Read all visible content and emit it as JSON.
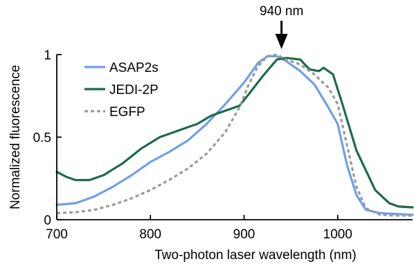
{
  "chart_data": {
    "type": "line",
    "xlabel": "Two-photon laser wavelength (nm)",
    "ylabel": "Normalized fluorescence",
    "xlim": [
      700,
      1080
    ],
    "ylim": [
      0,
      1
    ],
    "x_ticks": [
      700,
      800,
      900,
      1000
    ],
    "x_tick_labels": [
      "700",
      "800",
      "900",
      "1000"
    ],
    "y_ticks": [
      0,
      0.5,
      1
    ],
    "y_tick_labels": [
      "0",
      "0.5",
      "1"
    ],
    "grid": false,
    "legend_placement": "top-left",
    "annotation": {
      "text": "940 nm",
      "x": 940
    },
    "series": [
      {
        "name": "ASAP2s",
        "color": "#6e9ef0",
        "dash": "solid",
        "points": [
          [
            700,
            0.09
          ],
          [
            720,
            0.1
          ],
          [
            740,
            0.14
          ],
          [
            760,
            0.2
          ],
          [
            780,
            0.27
          ],
          [
            800,
            0.35
          ],
          [
            820,
            0.41
          ],
          [
            840,
            0.48
          ],
          [
            860,
            0.58
          ],
          [
            880,
            0.7
          ],
          [
            900,
            0.83
          ],
          [
            915,
            0.95
          ],
          [
            925,
            0.99
          ],
          [
            935,
            0.99
          ],
          [
            945,
            0.96
          ],
          [
            960,
            0.9
          ],
          [
            975,
            0.82
          ],
          [
            990,
            0.68
          ],
          [
            1000,
            0.58
          ],
          [
            1010,
            0.33
          ],
          [
            1020,
            0.15
          ],
          [
            1030,
            0.06
          ],
          [
            1045,
            0.04
          ],
          [
            1060,
            0.035
          ],
          [
            1080,
            0.03
          ]
        ]
      },
      {
        "name": "JEDI-2P",
        "color": "#1b6b4a",
        "dash": "solid",
        "points": [
          [
            700,
            0.29
          ],
          [
            710,
            0.26
          ],
          [
            720,
            0.24
          ],
          [
            735,
            0.24
          ],
          [
            750,
            0.27
          ],
          [
            770,
            0.34
          ],
          [
            790,
            0.43
          ],
          [
            810,
            0.5
          ],
          [
            830,
            0.54
          ],
          [
            850,
            0.58
          ],
          [
            865,
            0.63
          ],
          [
            880,
            0.66
          ],
          [
            895,
            0.69
          ],
          [
            905,
            0.76
          ],
          [
            920,
            0.87
          ],
          [
            935,
            0.97
          ],
          [
            945,
            0.98
          ],
          [
            960,
            0.97
          ],
          [
            970,
            0.91
          ],
          [
            980,
            0.9
          ],
          [
            985,
            0.92
          ],
          [
            995,
            0.88
          ],
          [
            1005,
            0.7
          ],
          [
            1020,
            0.42
          ],
          [
            1040,
            0.18
          ],
          [
            1055,
            0.1
          ],
          [
            1065,
            0.08
          ],
          [
            1080,
            0.075
          ]
        ]
      },
      {
        "name": "EGFP",
        "color": "#9a9a9a",
        "dash": "dashed",
        "points": [
          [
            700,
            0.04
          ],
          [
            720,
            0.045
          ],
          [
            740,
            0.06
          ],
          [
            760,
            0.09
          ],
          [
            780,
            0.13
          ],
          [
            800,
            0.18
          ],
          [
            820,
            0.24
          ],
          [
            840,
            0.31
          ],
          [
            860,
            0.4
          ],
          [
            880,
            0.53
          ],
          [
            895,
            0.68
          ],
          [
            905,
            0.82
          ],
          [
            915,
            0.93
          ],
          [
            925,
            0.99
          ],
          [
            935,
            1.0
          ],
          [
            945,
            0.97
          ],
          [
            960,
            0.94
          ],
          [
            975,
            0.88
          ],
          [
            990,
            0.8
          ],
          [
            1000,
            0.7
          ],
          [
            1010,
            0.45
          ],
          [
            1020,
            0.2
          ],
          [
            1030,
            0.07
          ],
          [
            1045,
            0.03
          ],
          [
            1060,
            0.025
          ],
          [
            1080,
            0.025
          ]
        ]
      }
    ]
  }
}
